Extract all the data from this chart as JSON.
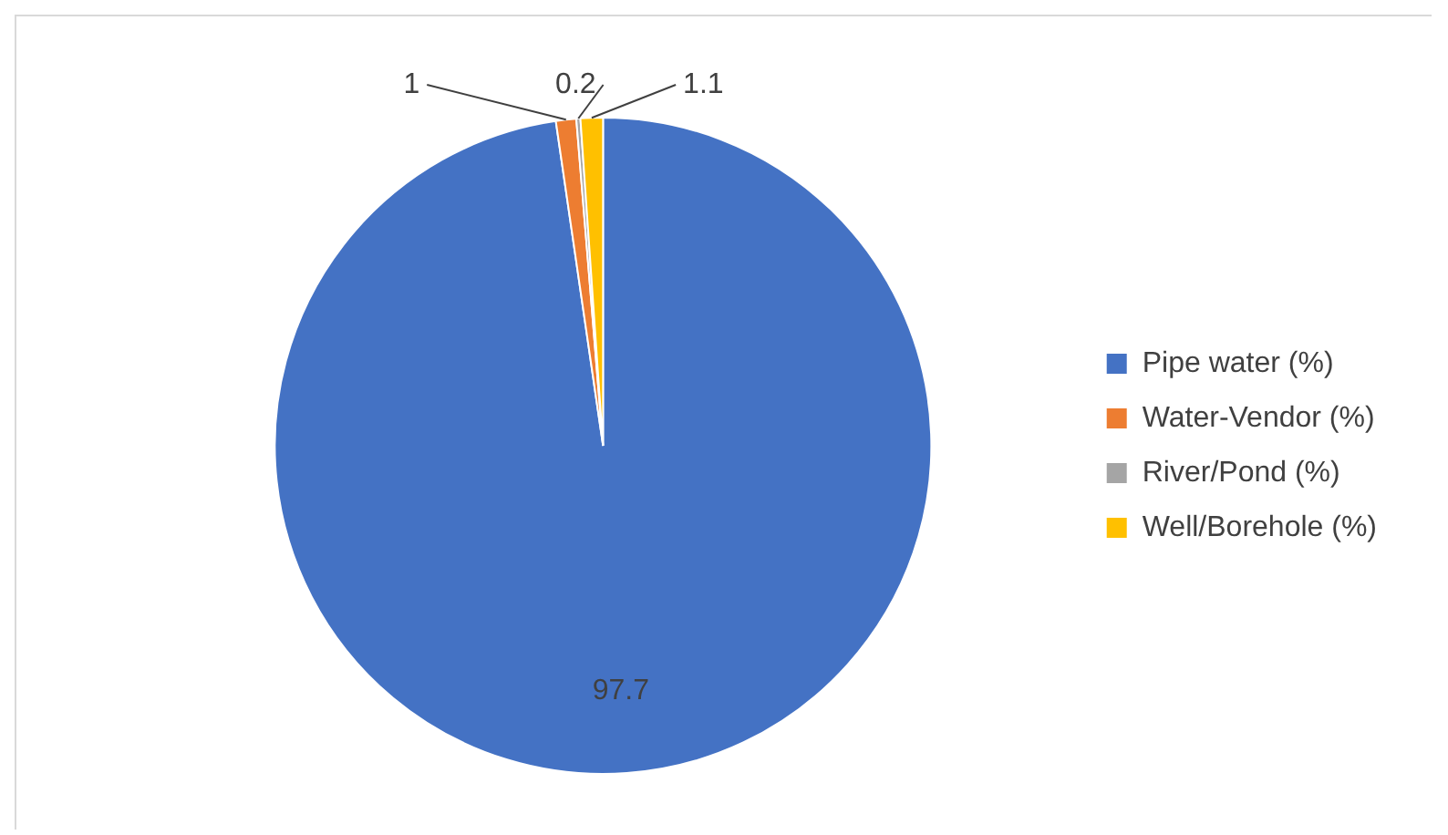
{
  "chart_data": {
    "type": "pie",
    "categories": [
      "Pipe water (%)",
      "Water-Vendor (%)",
      "River/Pond (%)",
      "Well/Borehole (%)"
    ],
    "values": [
      97.7,
      1,
      0.2,
      1.1
    ],
    "colors": [
      "#4472c4",
      "#ed7d31",
      "#a5a5a5",
      "#ffc000"
    ],
    "data_labels": true,
    "legend": "right"
  }
}
